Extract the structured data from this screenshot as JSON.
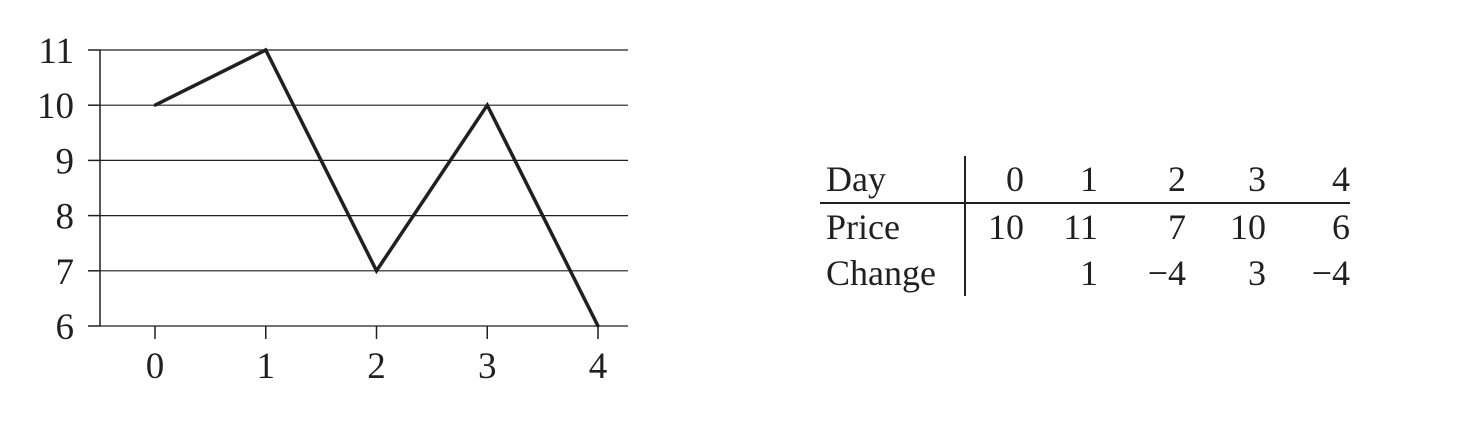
{
  "chart_data": {
    "type": "line",
    "x": [
      0,
      1,
      2,
      3,
      4
    ],
    "series": [
      {
        "values": [
          10,
          11,
          7,
          10,
          6
        ]
      }
    ],
    "xticks": [
      "0",
      "1",
      "2",
      "3",
      "4"
    ],
    "yticks": [
      "11",
      "10",
      "9",
      "8",
      "7",
      "6"
    ],
    "xlim": [
      -0.5,
      4.25
    ],
    "ylim": [
      6,
      11
    ],
    "grid": "horizontal",
    "title": "",
    "xlabel": "",
    "ylabel": "",
    "line_color": "#231f20"
  },
  "table": {
    "header": {
      "label": "Day",
      "cells": [
        "0",
        "1",
        "2",
        "3",
        "4"
      ]
    },
    "rows": [
      {
        "label": "Price",
        "cells": [
          "10",
          "11",
          "7",
          "10",
          "6"
        ]
      },
      {
        "label": "Change",
        "cells": [
          "",
          "1",
          "−4",
          "3",
          "−4"
        ]
      }
    ]
  }
}
